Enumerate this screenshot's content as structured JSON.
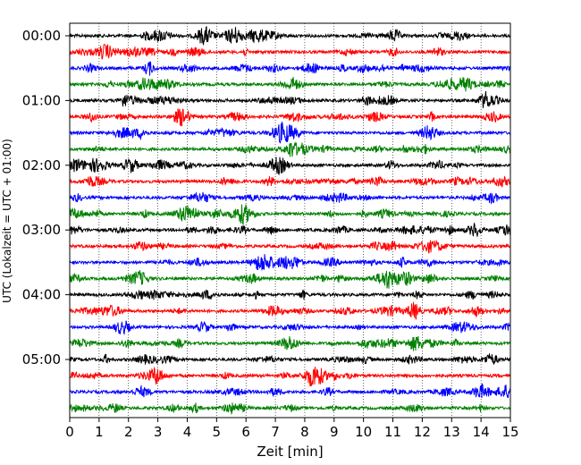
{
  "chart_data": {
    "type": "line",
    "title": "",
    "xlabel": "Zeit  [min]",
    "ylabel": "UTC (Lokalzeit = UTC + 01:00)",
    "xlim": [
      0,
      15
    ],
    "x_ticks": [
      "0",
      "1",
      "2",
      "3",
      "4",
      "5",
      "6",
      "7",
      "8",
      "9",
      "10",
      "11",
      "12",
      "13",
      "14",
      "15"
    ],
    "y_ticks": [
      "00:00",
      "01:00",
      "02:00",
      "03:00",
      "04:00",
      "05:00"
    ],
    "row_interval_minutes": 15,
    "row_count": 24,
    "row_colors": [
      "#000000",
      "#ff0000",
      "#0000ff",
      "#008000"
    ],
    "grid": "vertical dotted lines at each minute",
    "legend": "none"
  }
}
